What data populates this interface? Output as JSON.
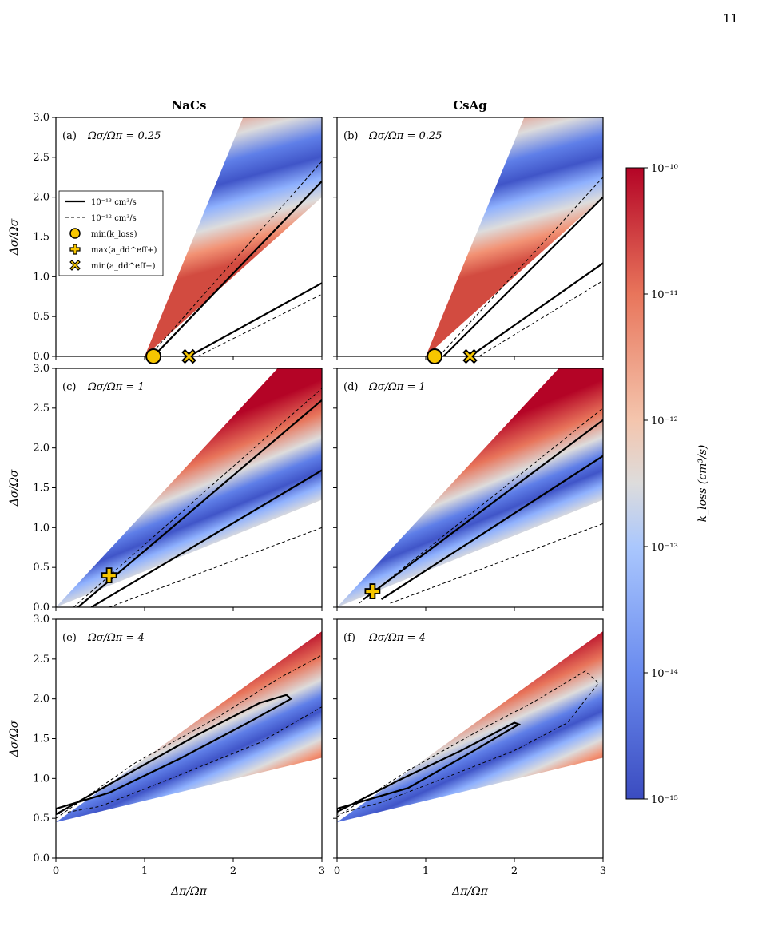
{
  "page_number": "11",
  "chart_data": {
    "type": "heatmap",
    "column_titles": [
      "NaCs",
      "CsAg"
    ],
    "xlabel": "Δπ/Ωπ",
    "ylabel": "Δσ/Ωσ",
    "xlim": [
      0,
      3
    ],
    "ylim": [
      0,
      3
    ],
    "x_ticks": [
      "0",
      "1",
      "2",
      "3"
    ],
    "y_ticks": [
      "0.0",
      "0.5",
      "1.0",
      "1.5",
      "2.0",
      "2.5",
      "3.0"
    ],
    "colorbar": {
      "label": "k_loss (cm³/s)",
      "scale": "log",
      "range": [
        1e-15,
        1e-10
      ],
      "tick_labels": [
        "10⁻¹⁰",
        "10⁻¹¹",
        "10⁻¹²",
        "10⁻¹³",
        "10⁻¹⁴",
        "10⁻¹⁵"
      ],
      "colors": {
        "low": "#3b4cc0",
        "mid": "#dddcdc",
        "high": "#b40426"
      }
    },
    "legend": {
      "placement": "upper-left of panel (a)",
      "entries": [
        {
          "label": "10⁻¹³ cm³/s",
          "style": "solid-line"
        },
        {
          "label": "10⁻¹² cm³/s",
          "style": "dashed-line"
        },
        {
          "label": "min(k_loss)",
          "style": "circle-marker"
        },
        {
          "label": "max(a_dd^eff+)",
          "style": "plus-marker"
        },
        {
          "label": "min(a_dd^eff−)",
          "style": "x-marker"
        }
      ]
    },
    "marker_color": "#f7c600",
    "panels": [
      {
        "id": "a",
        "label": "(a)",
        "ratio_text": "Ωσ/Ωπ = 0.25",
        "molecule": "NaCs",
        "wedge_slopes": [
          2.7,
          1.0
        ],
        "wedge_xstart": 1.0,
        "contour_13": {
          "upper": [
            [
              1.1,
              0
            ],
            [
              3,
              2.2
            ]
          ],
          "lower": [
            [
              1.5,
              0
            ],
            [
              3,
              0.92
            ]
          ]
        },
        "contour_12": {
          "upper": [
            [
              1.05,
              0
            ],
            [
              3,
              2.45
            ]
          ],
          "lower": [
            [
              1.6,
              0
            ],
            [
              3,
              0.78
            ]
          ]
        },
        "markers": [
          {
            "type": "circle",
            "x": 1.1,
            "y": 0.0
          },
          {
            "type": "x",
            "x": 1.5,
            "y": 0.0
          }
        ]
      },
      {
        "id": "b",
        "label": "(b)",
        "ratio_text": "Ωσ/Ωπ = 0.25",
        "molecule": "CsAg",
        "wedge_slopes": [
          2.7,
          1.0
        ],
        "wedge_xstart": 1.0,
        "contour_13": {
          "upper": [
            [
              1.2,
              0
            ],
            [
              3,
              2.0
            ]
          ],
          "lower": [
            [
              1.5,
              0
            ],
            [
              3,
              1.17
            ]
          ]
        },
        "contour_12": {
          "upper": [
            [
              1.15,
              0
            ],
            [
              3,
              2.25
            ]
          ],
          "lower": [
            [
              1.6,
              0
            ],
            [
              3,
              0.95
            ]
          ]
        },
        "markers": [
          {
            "type": "circle",
            "x": 1.1,
            "y": 0.0
          },
          {
            "type": "x",
            "x": 1.5,
            "y": 0.0
          }
        ]
      },
      {
        "id": "c",
        "label": "(c)",
        "ratio_text": "Ωσ/Ωπ = 1",
        "molecule": "NaCs",
        "wedge_slopes": [
          1.2,
          0.45
        ],
        "wedge_xstart": 0.0,
        "contour_13": {
          "upper": [
            [
              0.25,
              0
            ],
            [
              3,
              2.6
            ]
          ],
          "lower": [
            [
              0.4,
              0
            ],
            [
              3,
              1.72
            ]
          ]
        },
        "contour_12": {
          "upper": [
            [
              0.2,
              0
            ],
            [
              3,
              2.75
            ]
          ],
          "lower": [
            [
              0.6,
              0
            ],
            [
              3,
              1.0
            ]
          ]
        },
        "markers": [
          {
            "type": "plus",
            "x": 0.6,
            "y": 0.4
          }
        ]
      },
      {
        "id": "d",
        "label": "(d)",
        "ratio_text": "Ωσ/Ωπ = 1",
        "molecule": "CsAg",
        "wedge_slopes": [
          1.2,
          0.45
        ],
        "wedge_xstart": 0.0,
        "contour_13": {
          "upper": [
            [
              0.3,
              0.1
            ],
            [
              3,
              2.35
            ]
          ],
          "lower": [
            [
              0.5,
              0.1
            ],
            [
              3,
              1.9
            ]
          ]
        },
        "contour_12": {
          "upper": [
            [
              0.25,
              0.05
            ],
            [
              3,
              2.5
            ]
          ],
          "lower": [
            [
              0.6,
              0.05
            ],
            [
              3,
              1.05
            ]
          ]
        },
        "markers": [
          {
            "type": "plus",
            "x": 0.4,
            "y": 0.2
          }
        ]
      },
      {
        "id": "e",
        "label": "(e)",
        "ratio_text": "Ωσ/Ωπ = 4",
        "molecule": "NaCs",
        "wedge_slopes": [
          0.8,
          0.27
        ],
        "wedge_xstart": 0.0,
        "wedge_y0": 0.45,
        "contour_13": {
          "loop": [
            [
              0,
              0.55
            ],
            [
              0.8,
              1.05
            ],
            [
              1.6,
              1.55
            ],
            [
              2.3,
              1.95
            ],
            [
              2.6,
              2.05
            ],
            [
              2.65,
              2.0
            ],
            [
              2.2,
              1.72
            ],
            [
              1.4,
              1.25
            ],
            [
              0.6,
              0.82
            ],
            [
              0,
              0.62
            ]
          ]
        },
        "contour_12": {
          "loop": [
            [
              0,
              0.5
            ],
            [
              0.9,
              1.2
            ],
            [
              1.8,
              1.75
            ],
            [
              2.5,
              2.25
            ],
            [
              3,
              2.55
            ],
            [
              3,
              1.9
            ],
            [
              2.3,
              1.45
            ],
            [
              1.3,
              1.0
            ],
            [
              0.5,
              0.65
            ],
            [
              0,
              0.55
            ]
          ]
        },
        "markers": []
      },
      {
        "id": "f",
        "label": "(f)",
        "ratio_text": "Ωσ/Ωπ = 4",
        "molecule": "CsAg",
        "wedge_slopes": [
          0.8,
          0.27
        ],
        "wedge_xstart": 0.0,
        "wedge_y0": 0.45,
        "contour_13": {
          "loop": [
            [
              0,
              0.58
            ],
            [
              0.7,
              0.98
            ],
            [
              1.4,
              1.35
            ],
            [
              2.0,
              1.7
            ],
            [
              2.05,
              1.68
            ],
            [
              1.5,
              1.32
            ],
            [
              0.8,
              0.88
            ],
            [
              0,
              0.62
            ]
          ]
        },
        "contour_12": {
          "loop": [
            [
              0,
              0.52
            ],
            [
              0.8,
              1.1
            ],
            [
              1.6,
              1.6
            ],
            [
              2.2,
              1.95
            ],
            [
              2.8,
              2.35
            ],
            [
              2.95,
              2.2
            ],
            [
              2.6,
              1.7
            ],
            [
              2.0,
              1.35
            ],
            [
              1.2,
              1.0
            ],
            [
              0.5,
              0.7
            ],
            [
              0,
              0.55
            ]
          ]
        },
        "markers": []
      }
    ]
  }
}
